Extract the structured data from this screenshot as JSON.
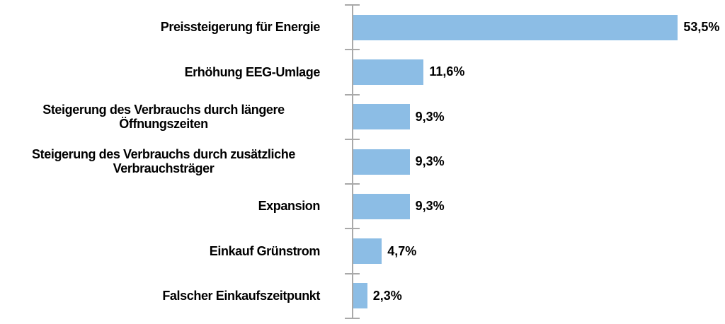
{
  "chart_data": {
    "type": "bar",
    "orientation": "horizontal",
    "title": "",
    "xlabel": "",
    "ylabel": "",
    "categories": [
      "Preissteigerung für Energie",
      "Erhöhung EEG-Umlage",
      "Steigerung des Verbrauchs durch längere Öffnungszeiten",
      "Steigerung des Verbrauchs durch zusätzliche Verbrauchsträger",
      "Expansion",
      "Einkauf Grünstrom",
      "Falscher Einkaufszeitpunkt"
    ],
    "values": [
      53.5,
      11.6,
      9.3,
      9.3,
      9.3,
      4.7,
      2.3
    ],
    "value_labels": [
      "53,5%",
      "11,6%",
      "9,3%",
      "9,3%",
      "9,3%",
      "4,7%",
      "2,3%"
    ],
    "label_align": [
      "right",
      "right",
      "center",
      "center",
      "right",
      "right",
      "right"
    ],
    "xlim": [
      0,
      60
    ],
    "grid": false,
    "legend": false,
    "bar_color": "#8CBDE5",
    "axis_color": "#A9A9A9",
    "text_color": "#000000"
  }
}
